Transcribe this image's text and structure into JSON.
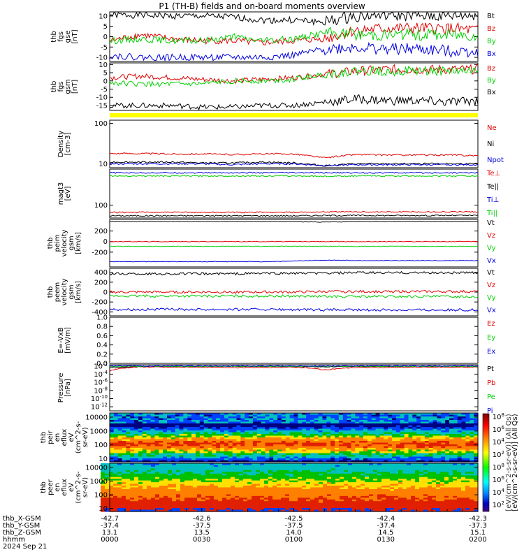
{
  "title": "P1 (TH-B) fields and on-board moments overview",
  "colors": {
    "black": "#000000",
    "red": "#e00000",
    "green": "#00d000",
    "blue": "#0000e0",
    "yellow": "#ffff00"
  },
  "chart_data": [
    {
      "type": "line",
      "panel": "fgs_gse",
      "ylabel": [
        "thb",
        "fgs",
        "gse",
        "[nT]"
      ],
      "ylim": [
        -12,
        12
      ],
      "yticks": [
        "10",
        "5",
        "0",
        "-5",
        "-10"
      ],
      "series": [
        {
          "name": "Bt",
          "color": "black",
          "x": [
            0,
            10,
            20,
            30,
            40,
            50,
            60,
            70,
            80,
            90,
            100,
            110,
            120
          ],
          "y": [
            10.5,
            10.5,
            10,
            10,
            9.5,
            8,
            8,
            7,
            10,
            10.5,
            10,
            10,
            10.5
          ]
        },
        {
          "name": "Bz",
          "color": "red",
          "x": [
            0,
            10,
            20,
            30,
            40,
            50,
            60,
            70,
            80,
            90,
            100,
            110,
            120
          ],
          "y": [
            -2,
            1,
            -1,
            -2,
            -2,
            -3,
            -2,
            -1,
            3,
            4,
            4,
            4,
            3
          ]
        },
        {
          "name": "By",
          "color": "green",
          "x": [
            0,
            10,
            20,
            30,
            40,
            50,
            60,
            70,
            80,
            90,
            100,
            110,
            120
          ],
          "y": [
            -2,
            -1,
            -2,
            -2,
            0,
            -2,
            -1,
            2,
            1,
            1,
            1,
            1,
            1
          ]
        },
        {
          "name": "Bx",
          "color": "blue",
          "x": [
            0,
            10,
            20,
            30,
            40,
            50,
            60,
            70,
            80,
            90,
            100,
            110,
            120
          ],
          "y": [
            -9,
            -10,
            -10,
            -10,
            -10,
            -10,
            -9,
            -6,
            -5,
            -6,
            -6,
            -7,
            -7
          ]
        }
      ]
    },
    {
      "type": "line",
      "panel": "fgs_gsm",
      "ylabel": [
        "thb",
        "fgs",
        "gsm",
        "[nT]"
      ],
      "ylim": [
        -18,
        11
      ],
      "yticks": [
        "10",
        "5",
        "0",
        "-5",
        "-10",
        "-15"
      ],
      "series": [
        {
          "name": "Bz",
          "color": "red",
          "x": [
            0,
            10,
            20,
            30,
            40,
            50,
            60,
            70,
            80,
            90,
            100,
            110,
            120
          ],
          "y": [
            2,
            3,
            2,
            1,
            0,
            1,
            2,
            4,
            6,
            7,
            7,
            7,
            7
          ]
        },
        {
          "name": "By",
          "color": "green",
          "x": [
            0,
            10,
            20,
            30,
            40,
            50,
            60,
            70,
            80,
            90,
            100,
            110,
            120
          ],
          "y": [
            -1,
            -2,
            -2,
            -2,
            0,
            0,
            1,
            4,
            6,
            6,
            6,
            6,
            6
          ]
        },
        {
          "name": "Bx",
          "color": "black",
          "x": [
            0,
            10,
            20,
            30,
            40,
            50,
            60,
            70,
            80,
            90,
            100,
            110,
            120
          ],
          "y": [
            -15,
            -15,
            -15,
            -16,
            -16,
            -15,
            -15,
            -13,
            -11,
            -12,
            -12,
            -13,
            -12
          ]
        }
      ]
    },
    {
      "type": "line",
      "panel": "density",
      "ylabel": [
        "Density",
        "[cm-3]"
      ],
      "ylim": [
        8,
        120
      ],
      "scale": "log",
      "yticks": [
        "100",
        "10"
      ],
      "series": [
        {
          "name": "Ne",
          "color": "red",
          "x": [
            0,
            10,
            20,
            30,
            40,
            50,
            60,
            70,
            80,
            90,
            100,
            110,
            120
          ],
          "y": [
            18,
            18,
            17.5,
            17.5,
            17,
            17.5,
            17.5,
            14,
            17,
            16.5,
            16.5,
            16.5,
            16
          ]
        },
        {
          "name": "Ni",
          "color": "black",
          "x": [
            0,
            10,
            20,
            30,
            40,
            50,
            60,
            70,
            80,
            90,
            100,
            110,
            120
          ],
          "y": [
            11,
            11,
            11,
            10.5,
            10.5,
            11,
            10.5,
            9,
            10,
            10,
            10,
            10,
            10
          ]
        },
        {
          "name": "Npot",
          "color": "blue",
          "x": [
            0,
            10,
            20,
            30,
            40,
            50,
            60,
            70,
            80,
            90,
            100,
            110,
            120
          ],
          "y": [
            10,
            10,
            10,
            10,
            9.5,
            10,
            10,
            9,
            9.5,
            9.5,
            9.5,
            9.5,
            9.5
          ]
        }
      ]
    },
    {
      "type": "line",
      "panel": "temperature",
      "ylabel": [
        "magt3",
        "[eV]"
      ],
      "ylim": [
        40,
        1300
      ],
      "scale": "log",
      "yticks": [
        "100"
      ],
      "series": [
        {
          "name": "Te⊥",
          "color": "red",
          "x": [
            0,
            10,
            20,
            30,
            40,
            50,
            60,
            70,
            80,
            90,
            100,
            110,
            120
          ],
          "y": [
            60,
            60,
            60,
            60,
            60,
            60,
            60,
            62,
            62,
            62,
            62,
            62,
            62
          ]
        },
        {
          "name": "Te||",
          "color": "black",
          "x": [
            0,
            10,
            20,
            30,
            40,
            50,
            60,
            70,
            80,
            90,
            100,
            110,
            120
          ],
          "y": [
            47,
            47,
            47,
            47,
            47,
            47,
            47,
            48,
            48,
            48,
            48,
            48,
            48
          ]
        },
        {
          "name": "Ti⊥",
          "color": "blue",
          "x": [
            0,
            10,
            20,
            30,
            40,
            50,
            60,
            70,
            80,
            90,
            100,
            110,
            120
          ],
          "y": [
            1000,
            1000,
            1000,
            1000,
            1000,
            1000,
            1000,
            1000,
            1000,
            1000,
            1000,
            1000,
            1000
          ]
        },
        {
          "name": "Ti||",
          "color": "green",
          "x": [
            0,
            10,
            20,
            30,
            40,
            50,
            60,
            70,
            80,
            90,
            100,
            110,
            120
          ],
          "y": [
            800,
            800,
            800,
            800,
            800,
            800,
            800,
            780,
            800,
            800,
            800,
            800,
            800
          ]
        }
      ]
    },
    {
      "type": "line",
      "panel": "peim_velocity",
      "ylabel": [
        "thb",
        "peim",
        "velocity",
        "gsm",
        "[km/s]"
      ],
      "ylim": [
        -480,
        420
      ],
      "yticks": [
        "200",
        "0",
        "-200"
      ],
      "series": [
        {
          "name": "Vt",
          "color": "black",
          "x": [
            0,
            10,
            20,
            30,
            40,
            50,
            60,
            70,
            80,
            90,
            100,
            110,
            120
          ],
          "y": [
            380,
            380,
            380,
            380,
            380,
            380,
            380,
            370,
            380,
            380,
            380,
            380,
            380
          ]
        },
        {
          "name": "Vz",
          "color": "red",
          "x": [
            0,
            10,
            20,
            30,
            40,
            50,
            60,
            70,
            80,
            90,
            100,
            110,
            120
          ],
          "y": [
            0,
            0,
            0,
            0,
            0,
            0,
            0,
            0,
            0,
            0,
            0,
            0,
            0
          ]
        },
        {
          "name": "Vy",
          "color": "green",
          "x": [
            0,
            10,
            20,
            30,
            40,
            50,
            60,
            70,
            80,
            90,
            100,
            110,
            120
          ],
          "y": [
            -90,
            -90,
            -90,
            -90,
            -90,
            -90,
            -90,
            -90,
            -90,
            -90,
            -90,
            -90,
            -90
          ]
        },
        {
          "name": "Vx",
          "color": "blue",
          "x": [
            0,
            10,
            20,
            30,
            40,
            50,
            60,
            70,
            80,
            90,
            100,
            110,
            120
          ],
          "y": [
            -380,
            -380,
            -380,
            -380,
            -380,
            -380,
            -370,
            -350,
            -360,
            -360,
            -360,
            -360,
            -360
          ]
        }
      ]
    },
    {
      "type": "line",
      "panel": "peem_velocity",
      "ylabel": [
        "thb",
        "peem",
        "velocity",
        "gsm",
        "[km/s]"
      ],
      "ylim": [
        -480,
        480
      ],
      "yticks": [
        "400",
        "200",
        "0",
        "-200",
        "-400"
      ],
      "series": [
        {
          "name": "Vt",
          "color": "black",
          "x": [
            0,
            10,
            20,
            30,
            40,
            50,
            60,
            70,
            80,
            90,
            100,
            110,
            120
          ],
          "y": [
            370,
            370,
            370,
            370,
            370,
            380,
            380,
            380,
            390,
            390,
            390,
            390,
            390
          ]
        },
        {
          "name": "Vz",
          "color": "red",
          "x": [
            0,
            10,
            20,
            30,
            40,
            50,
            60,
            70,
            80,
            90,
            100,
            110,
            120
          ],
          "y": [
            0,
            0,
            0,
            0,
            0,
            0,
            0,
            10,
            10,
            10,
            10,
            10,
            10
          ]
        },
        {
          "name": "Vy",
          "color": "green",
          "x": [
            0,
            10,
            20,
            30,
            40,
            50,
            60,
            70,
            80,
            90,
            100,
            110,
            120
          ],
          "y": [
            -80,
            -80,
            -80,
            -80,
            -80,
            -80,
            -80,
            -90,
            -90,
            -90,
            -90,
            -90,
            -90
          ]
        },
        {
          "name": "Vx",
          "color": "blue",
          "x": [
            0,
            10,
            20,
            30,
            40,
            50,
            60,
            70,
            80,
            90,
            100,
            110,
            120
          ],
          "y": [
            -350,
            -350,
            -350,
            -350,
            -350,
            -350,
            -360,
            -360,
            -360,
            -360,
            -360,
            -360,
            -360
          ]
        }
      ]
    },
    {
      "type": "line",
      "panel": "efield",
      "ylabel": [
        "E=-VxB",
        "[mV/m]"
      ],
      "ylim": [
        0,
        1
      ],
      "yticks": [
        "1.0",
        "0.8",
        "0.6",
        "0.4",
        "0.2",
        "0.0"
      ],
      "series": [
        {
          "name": "Ez",
          "color": "red",
          "x": [],
          "y": []
        },
        {
          "name": "Ey",
          "color": "green",
          "x": [],
          "y": []
        },
        {
          "name": "Ex",
          "color": "blue",
          "x": [],
          "y": []
        }
      ]
    },
    {
      "type": "line",
      "panel": "pressure",
      "ylabel": [
        "Pressure",
        "[nPa]"
      ],
      "ylim": [
        1e-13,
        0.02
      ],
      "scale": "log",
      "yticks": [
        "10^-2",
        "10^-4",
        "10^-6",
        "10^-8",
        "10^-10",
        "10^-12"
      ],
      "series": [
        {
          "name": "Pt",
          "color": "black",
          "x": [
            0,
            10,
            20,
            30,
            40,
            50,
            60,
            70,
            80,
            90,
            100,
            110,
            120
          ],
          "y": [
            0.003,
            0.008,
            0.009,
            0.008,
            0.009,
            0.008,
            0.008,
            0.006,
            0.008,
            0.008,
            0.008,
            0.008,
            0.008
          ]
        },
        {
          "name": "Pb",
          "color": "red",
          "x": [
            0,
            10,
            20,
            30,
            40,
            50,
            60,
            70,
            80,
            90,
            100,
            110,
            120
          ],
          "y": [
            0.0005,
            0.006,
            0.005,
            0.005,
            0.004,
            0.004,
            0.005,
            0.001,
            0.004,
            0.004,
            0.005,
            0.005,
            0.005
          ]
        },
        {
          "name": "Pe",
          "color": "green",
          "x": [
            0,
            10,
            20,
            30,
            40,
            50,
            60,
            70,
            80,
            90,
            100,
            110,
            120
          ],
          "y": [
            0.008,
            0.008,
            0.008,
            0.008,
            0.008,
            0.008,
            0.008,
            0.008,
            0.008,
            0.008,
            0.008,
            0.008,
            0.008
          ]
        },
        {
          "name": "Pi",
          "color": "blue",
          "x": [
            0,
            10,
            20,
            30,
            40,
            50,
            60,
            70,
            80,
            90,
            100,
            110,
            120
          ],
          "y": [
            0.01,
            0.01,
            0.01,
            0.01,
            0.01,
            0.01,
            0.01,
            0.01,
            0.01,
            0.01,
            0.01,
            0.01,
            0.01
          ]
        }
      ]
    },
    {
      "type": "heatmap",
      "panel": "peir_spectrogram",
      "ylabel": [
        "thb",
        "peir",
        "en",
        "eflux",
        "eV",
        "(cm^2-s-",
        "sr-eV)"
      ],
      "yticks": [
        "10000",
        "1000",
        "100",
        "10"
      ],
      "ylim": [
        6,
        20000
      ]
    },
    {
      "type": "heatmap",
      "panel": "peer_spectrogram",
      "ylabel": [
        "thb",
        "peer",
        "en",
        "eflux",
        "eV",
        "(cm^2-s-",
        "sr-eV)"
      ],
      "yticks": [
        "10000",
        "1000",
        "100",
        "10"
      ],
      "ylim": [
        6,
        20000
      ]
    }
  ],
  "colorbar": {
    "label": "[eV/(cm^2-s-sr-eV)] (All Qs)",
    "label2": "[eV/(cm^2-s-sr-eV)] (All Qs)",
    "ticks1": [
      "10^8",
      "10^6",
      "10^4",
      "10^2"
    ],
    "ticks2": [
      "10^8",
      "10^6",
      "10^4",
      "10^2"
    ]
  },
  "x_axis": {
    "rows": [
      {
        "label": "thb_X-GSM",
        "values": [
          "-42.7",
          "-42.6",
          "-42.5",
          "-42.4",
          "-42.3"
        ]
      },
      {
        "label": "thb_Y-GSM",
        "values": [
          "-37.4",
          "-37.5",
          "-37.5",
          "-37.4",
          "-37.3"
        ]
      },
      {
        "label": "thb_Z-GSM",
        "values": [
          "13.1",
          "13.5",
          "14.0",
          "14.5",
          "15.1"
        ]
      },
      {
        "label": "hhmm",
        "values": [
          "0000",
          "0030",
          "0100",
          "0130",
          "0200"
        ]
      }
    ],
    "date": "2024 Sep 21"
  }
}
